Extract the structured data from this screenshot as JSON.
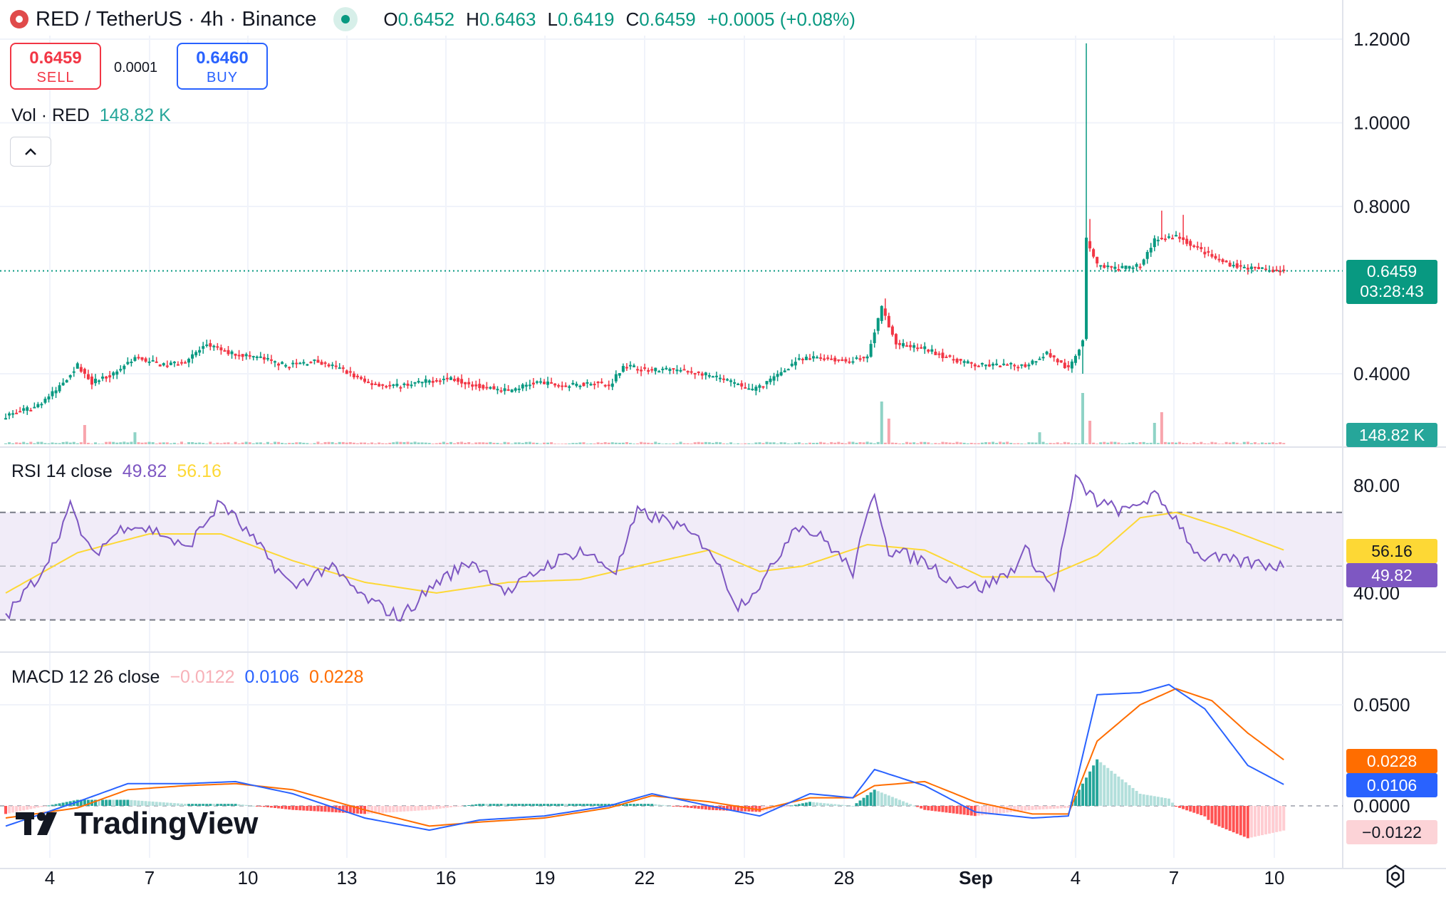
{
  "header": {
    "symbol": "RED / TetherUS · 4h · Binance",
    "ohlc": [
      {
        "k": "O",
        "v": "0.6452"
      },
      {
        "k": "H",
        "v": "0.6463"
      },
      {
        "k": "L",
        "v": "0.6419"
      },
      {
        "k": "C",
        "v": "0.6459"
      }
    ],
    "change": "+0.0005 (+0.08%)"
  },
  "trade": {
    "sell_price": "0.6459",
    "sell_label": "SELL",
    "spread": "0.0001",
    "buy_price": "0.6460",
    "buy_label": "BUY"
  },
  "volume": {
    "label": "Vol · RED",
    "value": "148.82 K"
  },
  "rsi": {
    "label": "RSI 14 close",
    "value": "49.82",
    "ma": "56.16"
  },
  "macd": {
    "label": "MACD 12 26 close",
    "hist": "−0.0122",
    "macd": "0.0106",
    "signal": "0.0228"
  },
  "price_tag": {
    "price": "0.6459",
    "countdown": "03:28:43"
  },
  "brand": "TradingView",
  "colors": {
    "up": "#089981",
    "down": "#f23645",
    "rsi": "#7e57c2",
    "rsi_ma": "#fdd835",
    "macd": "#2962ff",
    "signal": "#ff6d00",
    "band": "#ede7f6"
  },
  "chart_data": [
    {
      "type": "candlestick",
      "title": "RED / TetherUS · 4h · Binance",
      "x_ticks": [
        "4",
        "7",
        "10",
        "13",
        "16",
        "19",
        "22",
        "25",
        "28",
        "Sep",
        "4",
        "7",
        "10"
      ],
      "y_ticks": [
        "1.2000",
        "1.0000",
        "0.8000",
        "0.4000"
      ],
      "ylim": [
        0.3,
        1.22
      ],
      "last_price": 0.6459,
      "close_anchors": [
        [
          0,
          0.3
        ],
        [
          8,
          0.32
        ],
        [
          14,
          0.36
        ],
        [
          20,
          0.42
        ],
        [
          24,
          0.38
        ],
        [
          30,
          0.4
        ],
        [
          36,
          0.44
        ],
        [
          44,
          0.42
        ],
        [
          50,
          0.43
        ],
        [
          56,
          0.47
        ],
        [
          62,
          0.45
        ],
        [
          70,
          0.44
        ],
        [
          78,
          0.42
        ],
        [
          86,
          0.43
        ],
        [
          94,
          0.41
        ],
        [
          100,
          0.38
        ],
        [
          108,
          0.37
        ],
        [
          116,
          0.38
        ],
        [
          124,
          0.39
        ],
        [
          132,
          0.37
        ],
        [
          140,
          0.36
        ],
        [
          148,
          0.38
        ],
        [
          156,
          0.37
        ],
        [
          164,
          0.38
        ],
        [
          168,
          0.37
        ],
        [
          172,
          0.42
        ],
        [
          178,
          0.41
        ],
        [
          186,
          0.41
        ],
        [
          194,
          0.4
        ],
        [
          202,
          0.38
        ],
        [
          208,
          0.36
        ],
        [
          214,
          0.39
        ],
        [
          220,
          0.43
        ],
        [
          226,
          0.44
        ],
        [
          234,
          0.43
        ],
        [
          240,
          0.44
        ],
        [
          244,
          0.56
        ],
        [
          248,
          0.47
        ],
        [
          256,
          0.46
        ],
        [
          262,
          0.44
        ],
        [
          270,
          0.42
        ],
        [
          278,
          0.42
        ],
        [
          284,
          0.42
        ],
        [
          290,
          0.45
        ],
        [
          296,
          0.41
        ],
        [
          300,
          0.48
        ],
        [
          301,
          0.72
        ],
        [
          304,
          0.66
        ],
        [
          310,
          0.65
        ],
        [
          316,
          0.66
        ],
        [
          320,
          0.72
        ],
        [
          326,
          0.73
        ],
        [
          332,
          0.7
        ],
        [
          338,
          0.67
        ],
        [
          344,
          0.655
        ],
        [
          350,
          0.65
        ],
        [
          356,
          0.6459
        ]
      ],
      "spikes": [
        {
          "i": 245,
          "high": 0.58
        },
        {
          "i": 301,
          "high": 1.19
        },
        {
          "i": 302,
          "high": 0.77
        },
        {
          "i": 322,
          "high": 0.79
        },
        {
          "i": 328,
          "high": 0.78
        }
      ]
    },
    {
      "type": "bar",
      "title": "Vol · RED",
      "last_value": "148.82 K",
      "spikes": [
        {
          "i": 22,
          "v": 0.45
        },
        {
          "i": 36,
          "v": 0.28
        },
        {
          "i": 244,
          "v": 1.0
        },
        {
          "i": 246,
          "v": 0.6
        },
        {
          "i": 288,
          "v": 0.28
        },
        {
          "i": 300,
          "v": 1.2
        },
        {
          "i": 302,
          "v": 0.55
        },
        {
          "i": 320,
          "v": 0.5
        },
        {
          "i": 322,
          "v": 0.75
        }
      ]
    },
    {
      "type": "line",
      "title": "RSI 14 close",
      "ylim": [
        25,
        90
      ],
      "y_ticks": [
        "80.00",
        "40.00"
      ],
      "bands": [
        70,
        30
      ],
      "series": [
        {
          "name": "RSI",
          "last": 49.82,
          "anchors": [
            [
              0,
              31
            ],
            [
              10,
              48
            ],
            [
              18,
              72
            ],
            [
              24,
              54
            ],
            [
              34,
              66
            ],
            [
              44,
              62
            ],
            [
              50,
              56
            ],
            [
              60,
              74
            ],
            [
              70,
              58
            ],
            [
              80,
              42
            ],
            [
              90,
              50
            ],
            [
              100,
              38
            ],
            [
              110,
              31
            ],
            [
              120,
              44
            ],
            [
              130,
              52
            ],
            [
              140,
              40
            ],
            [
              150,
              50
            ],
            [
              160,
              56
            ],
            [
              170,
              48
            ],
            [
              176,
              70
            ],
            [
              186,
              66
            ],
            [
              196,
              57
            ],
            [
              204,
              35
            ],
            [
              212,
              46
            ],
            [
              220,
              66
            ],
            [
              228,
              60
            ],
            [
              236,
              48
            ],
            [
              242,
              78
            ],
            [
              246,
              56
            ],
            [
              256,
              52
            ],
            [
              264,
              44
            ],
            [
              272,
              42
            ],
            [
              280,
              48
            ],
            [
              284,
              56
            ],
            [
              292,
              41
            ],
            [
              298,
              82
            ],
            [
              304,
              74
            ],
            [
              312,
              70
            ],
            [
              316,
              74
            ],
            [
              320,
              76
            ],
            [
              326,
              68
            ],
            [
              332,
              54
            ],
            [
              340,
              52
            ],
            [
              356,
              50
            ]
          ]
        },
        {
          "name": "MA",
          "last": 56.16,
          "anchors": [
            [
              0,
              40
            ],
            [
              20,
              55
            ],
            [
              40,
              62
            ],
            [
              60,
              62
            ],
            [
              80,
              52
            ],
            [
              100,
              44
            ],
            [
              120,
              40
            ],
            [
              140,
              44
            ],
            [
              160,
              45
            ],
            [
              176,
              50
            ],
            [
              196,
              56
            ],
            [
              210,
              48
            ],
            [
              222,
              50
            ],
            [
              240,
              58
            ],
            [
              256,
              56
            ],
            [
              272,
              46
            ],
            [
              290,
              46
            ],
            [
              304,
              54
            ],
            [
              316,
              68
            ],
            [
              326,
              70
            ],
            [
              340,
              64
            ],
            [
              356,
              56
            ]
          ]
        }
      ]
    },
    {
      "type": "line",
      "title": "MACD 12 26 close",
      "ylim": [
        -0.03,
        0.065
      ],
      "y_ticks": [
        "0.0500",
        "0.0000"
      ],
      "series": [
        {
          "name": "MACD",
          "last": 0.0106,
          "anchors": [
            [
              0,
              -0.01
            ],
            [
              20,
              0.002
            ],
            [
              34,
              0.011
            ],
            [
              50,
              0.011
            ],
            [
              64,
              0.012
            ],
            [
              80,
              0.006
            ],
            [
              100,
              -0.006
            ],
            [
              118,
              -0.012
            ],
            [
              132,
              -0.007
            ],
            [
              150,
              -0.005
            ],
            [
              168,
              0.0
            ],
            [
              180,
              0.006
            ],
            [
              196,
              0.0
            ],
            [
              210,
              -0.005
            ],
            [
              224,
              0.006
            ],
            [
              236,
              0.004
            ],
            [
              242,
              0.018
            ],
            [
              256,
              0.01
            ],
            [
              270,
              -0.003
            ],
            [
              286,
              -0.006
            ],
            [
              296,
              -0.005
            ],
            [
              304,
              0.055
            ],
            [
              316,
              0.056
            ],
            [
              324,
              0.06
            ],
            [
              334,
              0.048
            ],
            [
              346,
              0.02
            ],
            [
              356,
              0.0106
            ]
          ]
        },
        {
          "name": "Signal",
          "last": 0.0228,
          "anchors": [
            [
              0,
              -0.006
            ],
            [
              20,
              -0.001
            ],
            [
              34,
              0.008
            ],
            [
              50,
              0.01
            ],
            [
              64,
              0.011
            ],
            [
              80,
              0.008
            ],
            [
              100,
              -0.002
            ],
            [
              118,
              -0.01
            ],
            [
              132,
              -0.008
            ],
            [
              150,
              -0.006
            ],
            [
              168,
              -0.001
            ],
            [
              180,
              0.005
            ],
            [
              196,
              0.002
            ],
            [
              210,
              -0.002
            ],
            [
              224,
              0.004
            ],
            [
              236,
              0.004
            ],
            [
              242,
              0.01
            ],
            [
              256,
              0.012
            ],
            [
              270,
              0.002
            ],
            [
              286,
              -0.004
            ],
            [
              296,
              -0.004
            ],
            [
              304,
              0.032
            ],
            [
              316,
              0.05
            ],
            [
              326,
              0.058
            ],
            [
              336,
              0.052
            ],
            [
              346,
              0.036
            ],
            [
              356,
              0.0228
            ]
          ]
        },
        {
          "name": "Histogram",
          "last": -0.0122
        }
      ]
    }
  ]
}
